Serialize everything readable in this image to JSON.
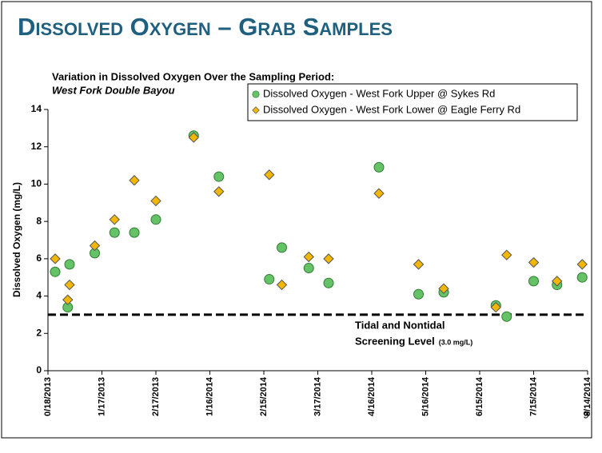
{
  "chart_data": {
    "type": "scatter",
    "title": "Dissolved Oxygen – Grab Samples",
    "subtitle": "Variation in Dissolved Oxygen Over the Sampling Period:",
    "subtitle_site": "West Fork Double Bayou",
    "y_label": "Dissolved Oxygen (mg/L)",
    "page_number": "9",
    "x": [
      4,
      11,
      12,
      26,
      37,
      48,
      60,
      81,
      95,
      123,
      130,
      145,
      156,
      184,
      206,
      220,
      249,
      255,
      270,
      283,
      297
    ],
    "series": [
      {
        "name": "Dissolved Oxygen - West Fork Upper @ Sykes Rd",
        "marker": "circle",
        "color": "#66c266",
        "values": [
          5.3,
          3.4,
          5.7,
          6.3,
          7.4,
          7.4,
          8.1,
          12.6,
          10.4,
          4.9,
          6.6,
          5.5,
          4.7,
          10.9,
          4.1,
          4.2,
          3.5,
          2.9,
          4.8,
          4.6,
          5.0
        ]
      },
      {
        "name": "Dissolved Oxygen - West Fork Lower @ Eagle Ferry Rd",
        "marker": "diamond",
        "color": "#f2b705",
        "values": [
          6.0,
          3.8,
          4.6,
          6.7,
          8.1,
          10.2,
          9.1,
          12.5,
          9.6,
          10.5,
          4.6,
          6.1,
          6.0,
          9.5,
          5.7,
          4.4,
          3.4,
          6.2,
          5.8,
          4.8,
          5.7
        ]
      }
    ],
    "xlim": [
      0,
      300
    ],
    "xticks": [
      {
        "value": 0,
        "label": "0/18/2013"
      },
      {
        "value": 30,
        "label": "1/17/2013"
      },
      {
        "value": 60,
        "label": "2/17/2013"
      },
      {
        "value": 90,
        "label": "1/16/2014"
      },
      {
        "value": 120,
        "label": "2/15/2014"
      },
      {
        "value": 150,
        "label": "3/17/2014"
      },
      {
        "value": 180,
        "label": "4/16/2014"
      },
      {
        "value": 210,
        "label": "5/16/2014"
      },
      {
        "value": 240,
        "label": "6/15/2014"
      },
      {
        "value": 270,
        "label": "7/15/2014"
      },
      {
        "value": 300,
        "label": "8/14/2014"
      }
    ],
    "ylim": [
      0,
      14
    ],
    "yticks": [
      0,
      2,
      4,
      6,
      8,
      10,
      12,
      14
    ],
    "screening_level": 3,
    "annotation": [
      "Tidal and Nontidal",
      "Screening Level"
    ],
    "annotation_unit": "(3.0 mg/L)"
  }
}
